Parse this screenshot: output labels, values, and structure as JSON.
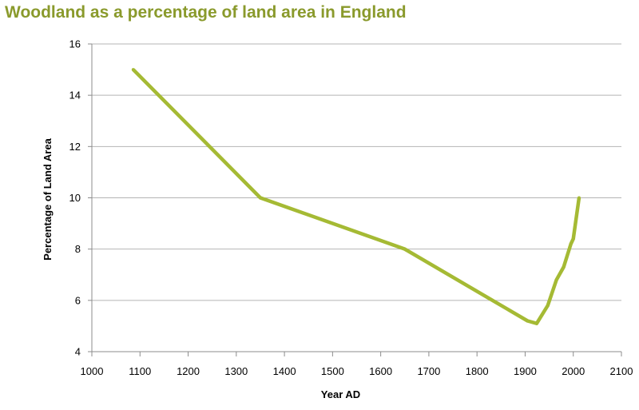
{
  "colors": {
    "title": "#8a9a2c",
    "series": "#a5ba34",
    "grid": "#b4b4b4",
    "axis": "#8c8c8c",
    "text": "#000000"
  },
  "chart_data": {
    "type": "line",
    "title": "Woodland as a percentage of land area in England",
    "xlabel": "Year AD",
    "ylabel": "Percentage of Land Area",
    "xlim": [
      1000,
      2100
    ],
    "ylim": [
      4,
      16
    ],
    "x_ticks": [
      1000,
      1100,
      1200,
      1300,
      1400,
      1500,
      1600,
      1700,
      1800,
      1900,
      2000,
      2100
    ],
    "y_ticks": [
      4,
      6,
      8,
      10,
      12,
      14,
      16
    ],
    "grid": "horizontal",
    "legend": "none",
    "series": [
      {
        "x": [
          1086,
          1350,
          1650,
          1905,
          1924,
          1947,
          1965,
          1980,
          1995,
          2000,
          2012
        ],
        "y": [
          15,
          10,
          8,
          5.2,
          5.1,
          5.8,
          6.8,
          7.3,
          8.2,
          8.4,
          10
        ]
      }
    ]
  }
}
